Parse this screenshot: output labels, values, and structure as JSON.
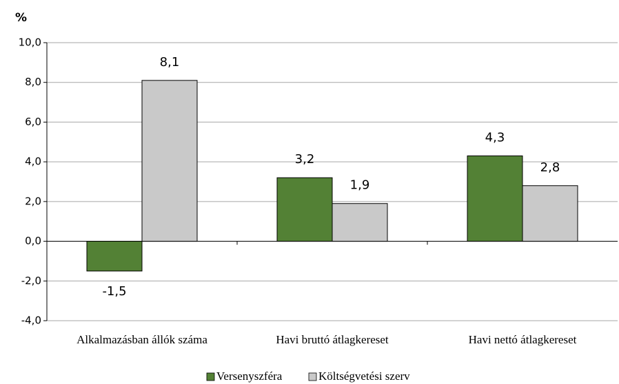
{
  "chart_data": {
    "type": "bar",
    "y_axis_label": "%",
    "categories": [
      "Alkalmazásban állók száma",
      "Havi bruttó átlagkereset",
      "Havi nettó átlagkereset"
    ],
    "series": [
      {
        "name": "Versenyszféra",
        "color": "#538135",
        "values": [
          -1.5,
          3.2,
          4.3
        ],
        "value_labels": [
          "-1,5",
          "3,2",
          "4,3"
        ]
      },
      {
        "name": "Költségvetési szerv",
        "color": "#c9c9c9",
        "values": [
          8.1,
          1.9,
          2.8
        ],
        "value_labels": [
          "8,1",
          "1,9",
          "2,8"
        ]
      }
    ],
    "ylim": [
      -4,
      10
    ],
    "yticks": [
      {
        "value": -4,
        "label": "-4,0"
      },
      {
        "value": -2,
        "label": "-2,0"
      },
      {
        "value": 0,
        "label": "0,0"
      },
      {
        "value": 2,
        "label": "2,0"
      },
      {
        "value": 4,
        "label": "4,0"
      },
      {
        "value": 6,
        "label": "6,0"
      },
      {
        "value": 8,
        "label": "8,0"
      },
      {
        "value": 10,
        "label": "10,0"
      }
    ],
    "grid": true,
    "legend": "bottom"
  }
}
